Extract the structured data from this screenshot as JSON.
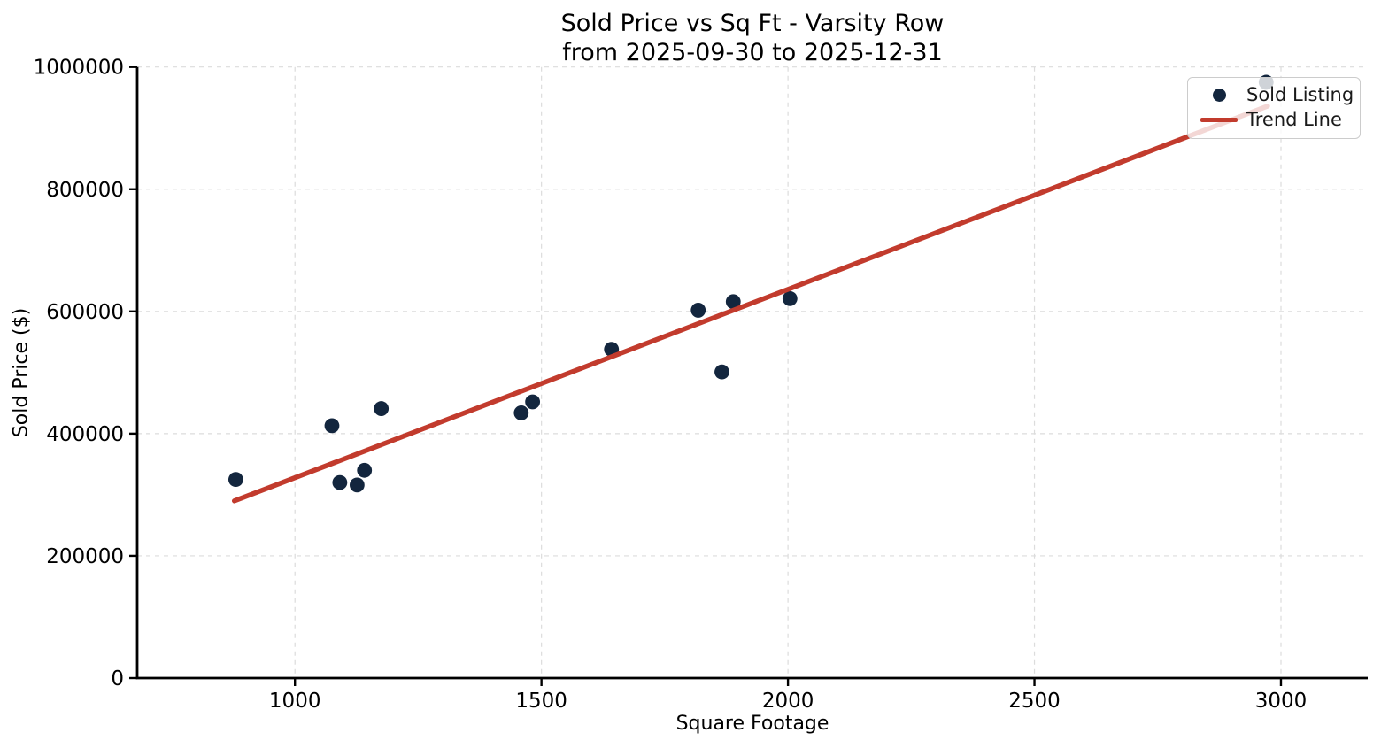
{
  "chart_data": {
    "type": "scatter",
    "title": "Sold Price vs Sq Ft - Varsity Row",
    "subtitle": "from 2025-09-30 to 2025-12-31",
    "xlabel": "Square Footage",
    "ylabel": "Sold Price ($)",
    "xlim": [
      680,
      3176
    ],
    "ylim": [
      0,
      1000000
    ],
    "x_ticks": [
      1000,
      1500,
      2000,
      2500,
      3000
    ],
    "y_ticks": [
      0,
      200000,
      400000,
      600000,
      800000,
      1000000
    ],
    "grid": true,
    "grid_color": "#dcdcdc",
    "legend_position": "upper right",
    "legend": [
      "Sold Listing",
      "Trend Line"
    ],
    "point_color": "#13263E",
    "trend_color": "#C23B2D",
    "series": [
      {
        "name": "Sold Listing",
        "kind": "scatter",
        "color": "#13263E",
        "points": [
          [
            880,
            325000
          ],
          [
            1075,
            413000
          ],
          [
            1091,
            320000
          ],
          [
            1126,
            316000
          ],
          [
            1141,
            340000
          ],
          [
            1175,
            441000
          ],
          [
            1459,
            434000
          ],
          [
            1482,
            452000
          ],
          [
            1642,
            538000
          ],
          [
            1818,
            602000
          ],
          [
            1866,
            501000
          ],
          [
            1889,
            616000
          ],
          [
            2004,
            621000
          ],
          [
            2970,
            975000
          ]
        ]
      },
      {
        "name": "Trend Line",
        "kind": "line",
        "color": "#C23B2D",
        "points": [
          [
            877,
            290000
          ],
          [
            2973,
            936000
          ]
        ]
      }
    ]
  }
}
